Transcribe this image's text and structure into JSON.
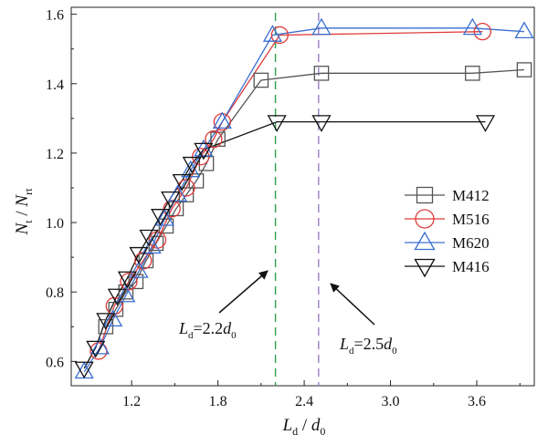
{
  "chart_data": {
    "type": "scatter",
    "xlabel": {
      "main": "L",
      "sub": "d",
      "sep": " / ",
      "main2": "d",
      "sub2": "0"
    },
    "ylabel": {
      "main": "N",
      "sub": "t",
      "sep": " / ",
      "main2": "N",
      "sub2": "rt"
    },
    "xlim": [
      0.78,
      4.0
    ],
    "ylim": [
      0.53,
      1.62
    ],
    "x_ticks": [
      1.2,
      1.8,
      2.4,
      3.0,
      3.6
    ],
    "y_ticks": [
      0.6,
      0.8,
      1.0,
      1.2,
      1.4,
      1.6
    ],
    "x_tick_labels": [
      "1.2",
      "1.8",
      "2.4",
      "3.0",
      "3.6"
    ],
    "y_tick_labels": [
      "0.6",
      "0.8",
      "1.0",
      "1.2",
      "1.4",
      "1.6"
    ],
    "legend_position": "right",
    "series": [
      {
        "name": "M412",
        "marker": "square",
        "color": "#555555",
        "x": [
          1.02,
          1.09,
          1.16,
          1.23,
          1.3,
          1.37,
          1.44,
          1.51,
          1.58,
          1.65,
          1.72,
          1.8,
          2.1,
          2.52,
          3.57,
          3.93
        ],
        "y": [
          0.7,
          0.75,
          0.8,
          0.83,
          0.89,
          0.94,
          0.99,
          1.04,
          1.08,
          1.12,
          1.17,
          1.24,
          1.41,
          1.43,
          1.43,
          1.44
        ]
      },
      {
        "name": "M516",
        "marker": "circle",
        "color": "#e03a3a",
        "x": [
          0.97,
          1.08,
          1.18,
          1.28,
          1.38,
          1.48,
          1.58,
          1.68,
          1.77,
          1.83,
          2.23,
          3.64
        ],
        "y": [
          0.63,
          0.76,
          0.83,
          0.89,
          0.95,
          1.04,
          1.1,
          1.19,
          1.24,
          1.29,
          1.54,
          1.55
        ]
      },
      {
        "name": "M620",
        "marker": "triangle-up",
        "color": "#3a6fd0",
        "x": [
          0.87,
          0.98,
          1.07,
          1.16,
          1.25,
          1.34,
          1.43,
          1.52,
          1.61,
          1.7,
          1.83,
          2.18,
          2.52,
          3.57,
          3.93
        ],
        "y": [
          0.57,
          0.64,
          0.72,
          0.79,
          0.86,
          0.93,
          1.01,
          1.08,
          1.15,
          1.21,
          1.29,
          1.54,
          1.56,
          1.56,
          1.55
        ]
      },
      {
        "name": "M416",
        "marker": "triangle-down",
        "color": "#111111",
        "x": [
          0.87,
          0.95,
          1.02,
          1.1,
          1.17,
          1.25,
          1.32,
          1.4,
          1.47,
          1.55,
          1.62,
          1.7,
          2.21,
          2.52,
          3.66
        ],
        "y": [
          0.58,
          0.64,
          0.72,
          0.79,
          0.84,
          0.91,
          0.96,
          1.02,
          1.07,
          1.12,
          1.17,
          1.21,
          1.29,
          1.29,
          1.29
        ]
      }
    ],
    "vlines": [
      {
        "x": 2.2,
        "color": "#2e9e4a"
      },
      {
        "x": 2.5,
        "color": "#9b7fc4"
      }
    ],
    "annotations": [
      {
        "main": "L",
        "sub": "d",
        "eq": "=2.2",
        "main2": "d",
        "sub2": "0",
        "target_x": 2.2
      },
      {
        "main": "L",
        "sub": "d",
        "eq": "=2.5",
        "main2": "d",
        "sub2": "0",
        "target_x": 2.5
      }
    ]
  }
}
